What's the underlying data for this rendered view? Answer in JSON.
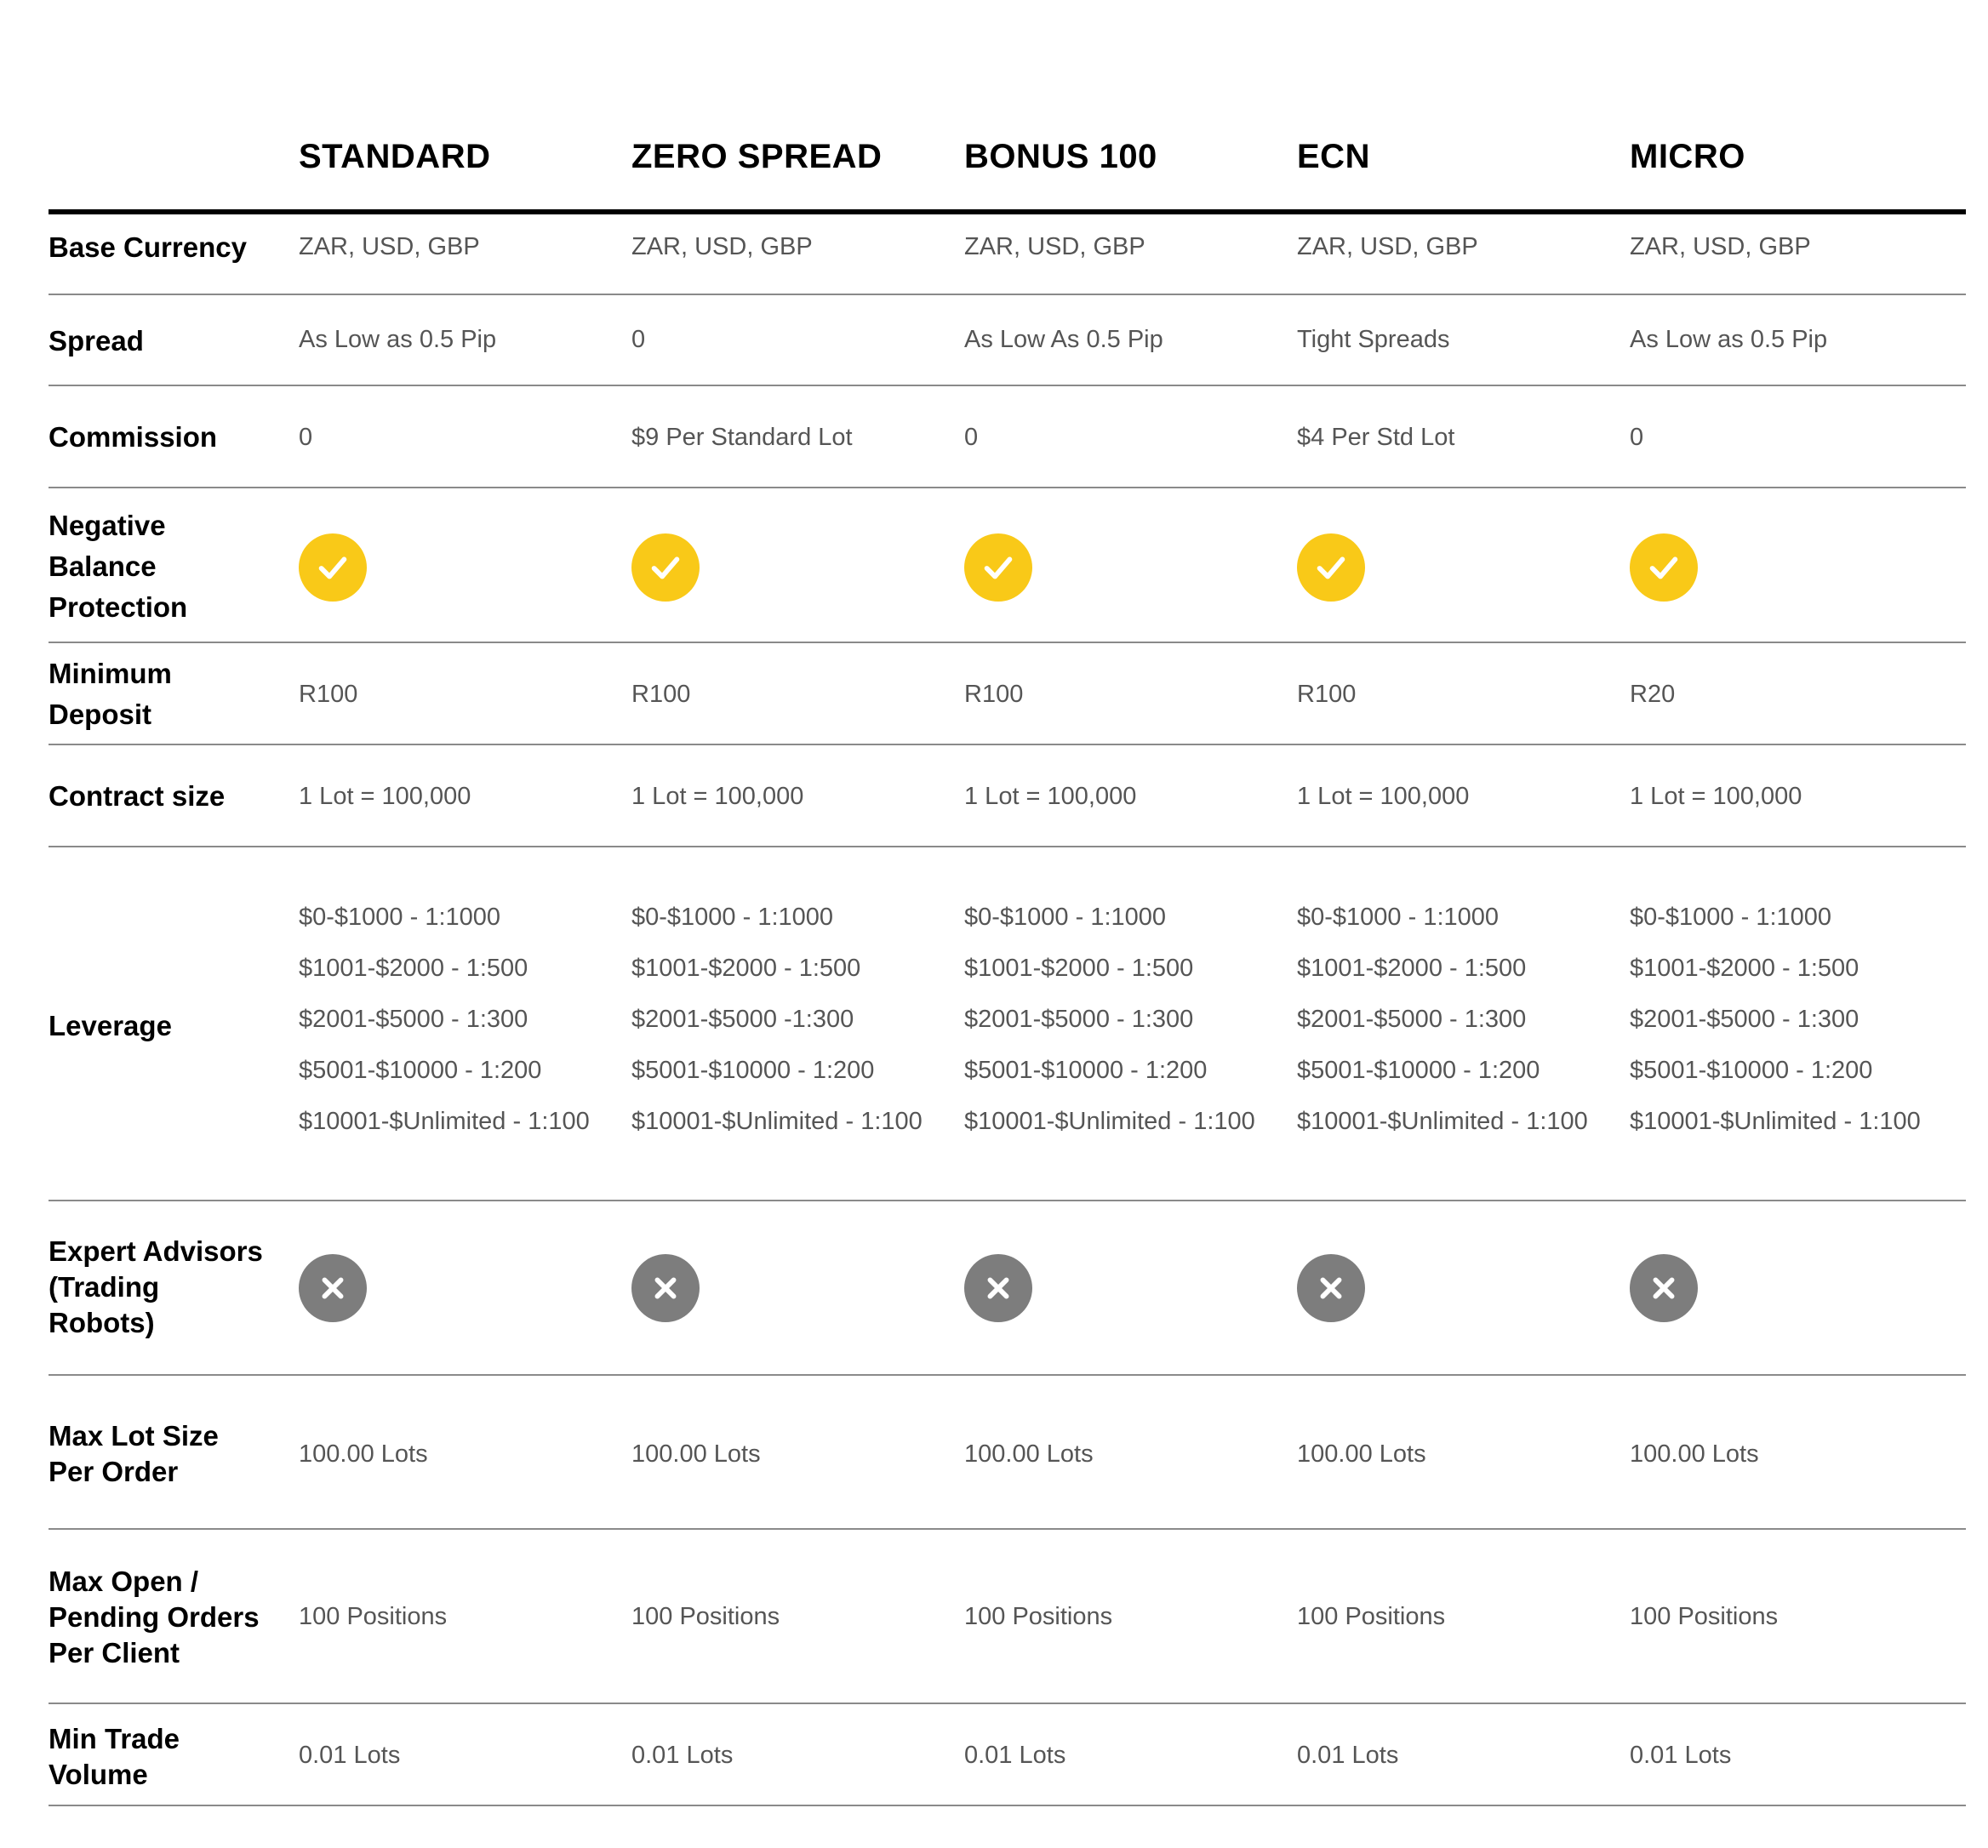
{
  "columns": [
    "STANDARD",
    "ZERO SPREAD",
    "BONUS 100",
    "ECN",
    "MICRO"
  ],
  "rows": {
    "base_currency": {
      "label": "Base Currency",
      "values": [
        "ZAR, USD, GBP",
        "ZAR, USD, GBP",
        "ZAR, USD, GBP",
        "ZAR, USD, GBP",
        "ZAR, USD, GBP"
      ]
    },
    "spread": {
      "label": "Spread",
      "values": [
        "As Low as 0.5 Pip",
        "0",
        "As Low As 0.5 Pip",
        "Tight Spreads",
        "As Low as 0.5 Pip"
      ]
    },
    "commission": {
      "label": "Commission",
      "values": [
        "0",
        "$9 Per Standard Lot",
        "0",
        "$4 Per Std Lot",
        "0"
      ]
    },
    "negative_balance": {
      "label_lines": [
        "Negative",
        "Balance",
        "Protection"
      ],
      "icon": "check-circle-icon",
      "values": [
        true,
        true,
        true,
        true,
        true
      ]
    },
    "minimum_deposit": {
      "label_lines": [
        "Minimum",
        "Deposit"
      ],
      "values": [
        "R100",
        "R100",
        "R100",
        "R100",
        "R20"
      ]
    },
    "contract_size": {
      "label": "Contract size",
      "values": [
        "1 Lot = 100,000",
        "1 Lot = 100,000",
        "1 Lot = 100,000",
        "1 Lot = 100,000",
        "1 Lot = 100,000"
      ]
    },
    "leverage": {
      "label": "Leverage",
      "values": [
        [
          "$0-$1000 - 1:1000",
          "$1001-$2000 - 1:500",
          "$2001-$5000 - 1:300",
          "$5001-$10000 - 1:200",
          "$10001-$Unlimited - 1:100"
        ],
        [
          "$0-$1000 - 1:1000",
          "$1001-$2000 - 1:500",
          "$2001-$5000 -1:300",
          "$5001-$10000 - 1:200",
          "$10001-$Unlimited - 1:100"
        ],
        [
          "$0-$1000 -  1:1000",
          "$1001-$2000 - 1:500",
          "$2001-$5000 - 1:300",
          "$5001-$10000 - 1:200",
          "$10001-$Unlimited - 1:100"
        ],
        [
          "$0-$1000 -  1:1000",
          "$1001-$2000 - 1:500",
          "$2001-$5000 - 1:300",
          "$5001-$10000 - 1:200",
          "$10001-$Unlimited - 1:100"
        ],
        [
          "$0-$1000 -  1:1000",
          "$1001-$2000 - 1:500",
          "$2001-$5000 - 1:300",
          "$5001-$10000 - 1:200",
          "$10001-$Unlimited - 1:100"
        ]
      ]
    },
    "expert_advisors": {
      "label_lines": [
        "Expert Advisors",
        "(Trading",
        "Robots)"
      ],
      "icon": "cross-circle-icon",
      "values": [
        false,
        false,
        false,
        false,
        false
      ]
    },
    "max_lot_size": {
      "label_lines": [
        "Max Lot Size",
        "Per Order"
      ],
      "values": [
        "100.00 Lots",
        "100.00 Lots",
        "100.00 Lots",
        "100.00 Lots",
        "100.00 Lots"
      ]
    },
    "max_open_orders": {
      "label_lines": [
        "Max Open /",
        "Pending Orders",
        "Per Client"
      ],
      "values": [
        "100 Positions",
        "100 Positions",
        "100 Positions",
        "100 Positions",
        "100 Positions"
      ]
    },
    "min_trade_volume": {
      "label_lines": [
        "Min Trade",
        "Volume"
      ],
      "values": [
        "0.01 Lots",
        "0.01 Lots",
        "0.01 Lots",
        "0.01 Lots",
        "0.01 Lots"
      ]
    }
  },
  "colors": {
    "check": "#F9C918",
    "cross": "#7D7D7D",
    "value_text": "#555555",
    "label_text": "#000000",
    "divider": "#8a8a8a"
  }
}
